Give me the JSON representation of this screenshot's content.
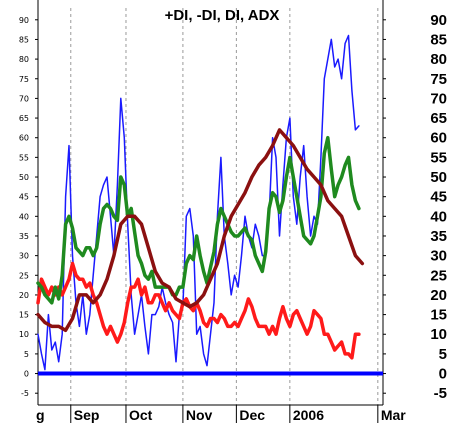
{
  "chart_data": {
    "type": "line",
    "title": "+DI, -DI, DI, ADX",
    "xlabel": "",
    "ylabel": "",
    "ylim": [
      -8,
      93
    ],
    "xlim": [
      0,
      100
    ],
    "y_ticks": [
      -5,
      0,
      5,
      10,
      15,
      20,
      25,
      30,
      35,
      40,
      45,
      50,
      55,
      60,
      65,
      70,
      75,
      80,
      85,
      90
    ],
    "x_ticks": [
      {
        "label": "g",
        "x": 0
      },
      {
        "label": "Sep",
        "x": 9.5
      },
      {
        "label": "Oct",
        "x": 25.5
      },
      {
        "label": "Nov",
        "x": 42
      },
      {
        "label": "Dec",
        "x": 57.5
      },
      {
        "label": "2006",
        "x": 73
      },
      {
        "label": "Mar",
        "x": 98.5
      }
    ],
    "grid": true,
    "legend": "none",
    "colors": {
      "di": "#1a1aff",
      "plus_di": "#1f8a1f",
      "minus_di": "#ff1a1a",
      "adx": "#8b1010",
      "zero": "#0000ff",
      "grid": "#9a9a9a"
    },
    "series": [
      {
        "key": "di",
        "x": [
          0,
          1,
          2,
          3,
          4,
          5,
          6,
          7,
          8,
          9,
          10,
          11,
          12,
          13,
          14,
          15,
          16,
          17,
          18,
          19,
          20,
          21,
          22,
          23,
          24,
          25,
          26,
          27,
          28,
          29,
          30,
          31,
          32,
          33,
          34,
          35,
          36,
          37,
          38,
          39,
          40,
          41,
          42,
          43,
          44,
          45,
          46,
          47,
          48,
          49,
          50,
          51,
          52,
          53,
          54,
          55,
          56,
          57,
          58,
          59,
          60,
          61,
          62,
          63,
          64,
          65,
          66,
          67,
          68,
          69,
          70,
          71,
          72,
          73,
          74,
          75,
          76,
          77,
          78,
          79,
          80,
          81,
          82,
          83,
          84,
          85,
          86,
          87,
          88,
          89,
          90,
          91,
          92,
          93,
          94,
          95,
          96,
          97,
          98,
          99,
          100
        ],
        "values": [
          10,
          5,
          1,
          15,
          6,
          8,
          3,
          10,
          45,
          58,
          30,
          18,
          12,
          20,
          10,
          15,
          25,
          35,
          45,
          48,
          50,
          40,
          30,
          48,
          70,
          60,
          38,
          20,
          10,
          15,
          20,
          12,
          5,
          15,
          15,
          17,
          22,
          18,
          15,
          13,
          3,
          15,
          17,
          40,
          42,
          35,
          10,
          12,
          5,
          2,
          10,
          18,
          40,
          55,
          35,
          28,
          20,
          25,
          22,
          30,
          40,
          35,
          32,
          38,
          35,
          30,
          30,
          40,
          60,
          55,
          35,
          48,
          60,
          65,
          45,
          38,
          50,
          58,
          45,
          35,
          40,
          38,
          55,
          75,
          80,
          85,
          78,
          80,
          75,
          84,
          86,
          72,
          62,
          63,
          null,
          null,
          null,
          null,
          null,
          null,
          null
        ]
      },
      {
        "key": "plus_di",
        "x": [
          0,
          1,
          2,
          3,
          4,
          5,
          6,
          7,
          8,
          9,
          10,
          11,
          12,
          13,
          14,
          15,
          16,
          17,
          18,
          19,
          20,
          21,
          22,
          23,
          24,
          25,
          26,
          27,
          28,
          29,
          30,
          31,
          32,
          33,
          34,
          35,
          36,
          37,
          38,
          39,
          40,
          41,
          42,
          43,
          44,
          45,
          46,
          47,
          48,
          49,
          50,
          51,
          52,
          53,
          54,
          55,
          56,
          57,
          58,
          59,
          60,
          61,
          62,
          63,
          64,
          65,
          66,
          67,
          68,
          69,
          70,
          71,
          72,
          73,
          74,
          75,
          76,
          77,
          78,
          79,
          80,
          81,
          82,
          83,
          84,
          85,
          86,
          87,
          88,
          89,
          90,
          91,
          92,
          93,
          94,
          95,
          96,
          97,
          98,
          99,
          100
        ],
        "values": [
          23,
          22,
          20,
          19,
          18,
          22,
          19,
          25,
          38,
          40,
          37,
          32,
          31,
          30,
          32,
          32,
          30,
          32,
          38,
          42,
          43,
          42,
          40,
          39,
          50,
          48,
          40,
          42,
          36,
          30,
          28,
          25,
          24,
          26,
          22,
          22,
          22,
          22,
          22,
          20,
          20,
          22,
          22,
          28,
          30,
          29,
          35,
          30,
          26,
          23,
          27,
          31,
          38,
          42,
          40,
          38,
          36,
          35,
          35,
          36,
          37,
          35,
          34,
          30,
          28,
          26,
          31,
          42,
          46,
          45,
          41,
          44,
          50,
          55,
          50,
          45,
          40,
          35,
          34,
          33,
          35,
          40,
          45,
          56,
          60,
          52,
          45,
          48,
          50,
          53,
          55,
          48,
          44,
          42,
          null,
          null,
          null,
          null,
          null,
          null,
          null
        ]
      },
      {
        "key": "minus_di",
        "x": [
          0,
          1,
          2,
          3,
          4,
          5,
          6,
          7,
          8,
          9,
          10,
          11,
          12,
          13,
          14,
          15,
          16,
          17,
          18,
          19,
          20,
          21,
          22,
          23,
          24,
          25,
          26,
          27,
          28,
          29,
          30,
          31,
          32,
          33,
          34,
          35,
          36,
          37,
          38,
          39,
          40,
          41,
          42,
          43,
          44,
          45,
          46,
          47,
          48,
          49,
          50,
          51,
          52,
          53,
          54,
          55,
          56,
          57,
          58,
          59,
          60,
          61,
          62,
          63,
          64,
          65,
          66,
          67,
          68,
          69,
          70,
          71,
          72,
          73,
          74,
          75,
          76,
          77,
          78,
          79,
          80,
          81,
          82,
          83,
          84,
          85,
          86,
          87,
          88,
          89,
          90,
          91,
          92,
          93,
          94,
          95,
          96,
          97,
          98,
          99,
          100
        ],
        "values": [
          18,
          24,
          22,
          20,
          22,
          20,
          22,
          20,
          22,
          24,
          28,
          25,
          24,
          24,
          22,
          23,
          20,
          18,
          15,
          12,
          10,
          12,
          10,
          8,
          10,
          13,
          18,
          22,
          22,
          24,
          20,
          22,
          18,
          18,
          20,
          20,
          18,
          16,
          18,
          16,
          15,
          14,
          18,
          19,
          17,
          16,
          18,
          16,
          13,
          12,
          14,
          14,
          13,
          15,
          14,
          12,
          12,
          13,
          12,
          14,
          16,
          19,
          17,
          14,
          12,
          12,
          12,
          10,
          12,
          10,
          14,
          17,
          14,
          12,
          15,
          16,
          14,
          12,
          10,
          12,
          16,
          15,
          14,
          10,
          10,
          8,
          6,
          7,
          8,
          5,
          5,
          4,
          10,
          10,
          null,
          null,
          null,
          null,
          null,
          null,
          null
        ]
      },
      {
        "key": "adx",
        "x": [
          0,
          2,
          4,
          6,
          8,
          10,
          12,
          14,
          16,
          18,
          20,
          22,
          24,
          26,
          28,
          30,
          32,
          34,
          36,
          38,
          40,
          42,
          44,
          46,
          48,
          50,
          52,
          54,
          56,
          58,
          60,
          62,
          64,
          66,
          68,
          70,
          72,
          74,
          76,
          78,
          80,
          82,
          84,
          86,
          88,
          90,
          92,
          94
        ],
        "values": [
          15,
          13,
          12,
          12,
          11,
          14,
          20,
          20,
          18,
          20,
          24,
          30,
          38,
          40,
          40,
          38,
          32,
          26,
          23,
          22,
          19,
          18,
          17,
          18,
          20,
          24,
          28,
          35,
          40,
          43,
          46,
          50,
          53,
          55,
          58,
          62,
          60,
          58,
          55,
          52,
          50,
          48,
          44,
          42,
          40,
          35,
          30,
          28
        ]
      }
    ]
  }
}
